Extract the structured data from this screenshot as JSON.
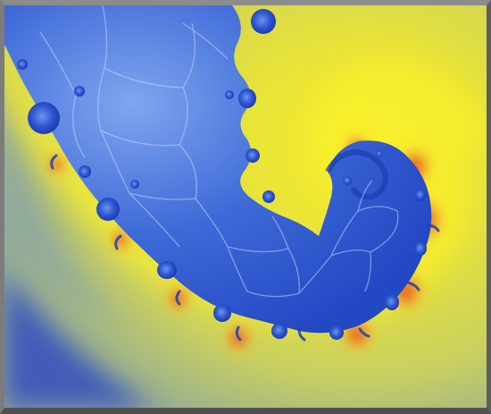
{
  "image": {
    "subject": "fractal-render",
    "colors": {
      "frame": "#7a7a7a",
      "background_yellow": "#e4e23a",
      "background_pale": "#cfd45a",
      "interior_blue": "#2c58d0",
      "interior_light_blue": "#6f9be8",
      "halo_red": "#e23a22",
      "halo_orange": "#f2a42a",
      "edge_blue_corner": "#2f49b8"
    }
  }
}
